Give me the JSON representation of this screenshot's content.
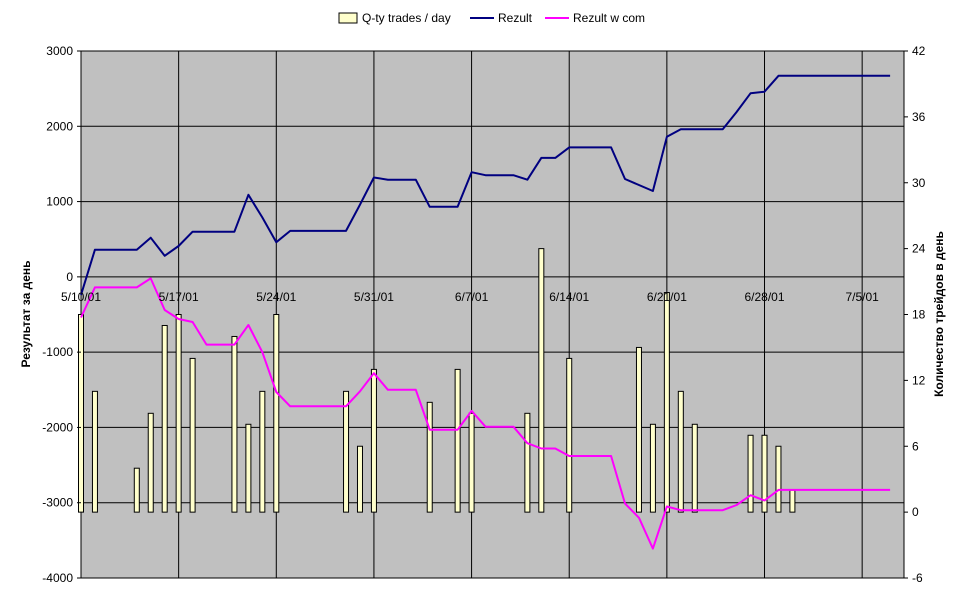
{
  "chart_data": {
    "type": "bar+line",
    "legend": {
      "placement": "top",
      "entries": [
        "Q-ty trades / day",
        "Rezult",
        "Rezult w com"
      ]
    },
    "colors": {
      "plot_bg": "#c0c0c0",
      "bar_fill": "#ffffcc",
      "bar_stroke": "#000000",
      "rezult": "#000080",
      "rezult_com": "#ff00ff",
      "grid": "#000000"
    },
    "grid": true,
    "x_axis": {
      "type": "date",
      "range": [
        "2001-05-10",
        "2001-07-08"
      ],
      "tick_labels": [
        "5/10/01",
        "5/17/01",
        "5/24/01",
        "5/31/01",
        "6/7/01",
        "6/14/01",
        "6/21/01",
        "6/28/01",
        "7/5/01"
      ],
      "tick_dates": [
        "2001-05-10",
        "2001-05-17",
        "2001-05-24",
        "2001-05-31",
        "2001-06-07",
        "2001-06-14",
        "2001-06-21",
        "2001-06-28",
        "2001-07-05"
      ]
    },
    "y_left": {
      "label": "Результат за день",
      "range": [
        -4000,
        3000
      ],
      "tick_labels": [
        "3000",
        "2000",
        "1000",
        "0",
        "-1000",
        "-2000",
        "-3000",
        "-4000"
      ],
      "ticks": [
        3000,
        2000,
        1000,
        0,
        -1000,
        -2000,
        -3000,
        -4000
      ]
    },
    "y_right": {
      "label": "Количество трейдов в день",
      "range": [
        -6,
        42
      ],
      "tick_labels": [
        "42",
        "36",
        "30",
        "24",
        "18",
        "12",
        "6",
        "0",
        "-6"
      ],
      "ticks": [
        42,
        36,
        30,
        24,
        18,
        12,
        6,
        0,
        -6
      ]
    },
    "series": [
      {
        "name": "Q-ty trades / day",
        "kind": "bar",
        "axis": "right",
        "points": [
          [
            "2001-05-10",
            18
          ],
          [
            "2001-05-11",
            11
          ],
          [
            "2001-05-14",
            4
          ],
          [
            "2001-05-15",
            9
          ],
          [
            "2001-05-16",
            17
          ],
          [
            "2001-05-17",
            18
          ],
          [
            "2001-05-18",
            14
          ],
          [
            "2001-05-21",
            16
          ],
          [
            "2001-05-22",
            8
          ],
          [
            "2001-05-23",
            11
          ],
          [
            "2001-05-24",
            18
          ],
          [
            "2001-05-29",
            11
          ],
          [
            "2001-05-30",
            6
          ],
          [
            "2001-05-31",
            13
          ],
          [
            "2001-06-04",
            10
          ],
          [
            "2001-06-06",
            13
          ],
          [
            "2001-06-07",
            9
          ],
          [
            "2001-06-11",
            9
          ],
          [
            "2001-06-12",
            24
          ],
          [
            "2001-06-14",
            14
          ],
          [
            "2001-06-19",
            15
          ],
          [
            "2001-06-20",
            8
          ],
          [
            "2001-06-21",
            20
          ],
          [
            "2001-06-22",
            11
          ],
          [
            "2001-06-23",
            8
          ],
          [
            "2001-06-27",
            7
          ],
          [
            "2001-06-28",
            7
          ],
          [
            "2001-06-29",
            6
          ],
          [
            "2001-06-30",
            2
          ]
        ]
      },
      {
        "name": "Rezult",
        "kind": "line",
        "axis": "left",
        "points": [
          [
            "2001-05-10",
            -240
          ],
          [
            "2001-05-11",
            360
          ],
          [
            "2001-05-13",
            360
          ],
          [
            "2001-05-14",
            360
          ],
          [
            "2001-05-15",
            520
          ],
          [
            "2001-05-16",
            280
          ],
          [
            "2001-05-17",
            410
          ],
          [
            "2001-05-18",
            600
          ],
          [
            "2001-05-20",
            600
          ],
          [
            "2001-05-21",
            600
          ],
          [
            "2001-05-22",
            1090
          ],
          [
            "2001-05-23",
            790
          ],
          [
            "2001-05-24",
            460
          ],
          [
            "2001-05-25",
            610
          ],
          [
            "2001-05-27",
            610
          ],
          [
            "2001-05-29",
            610
          ],
          [
            "2001-05-30",
            960
          ],
          [
            "2001-05-31",
            1320
          ],
          [
            "2001-06-01",
            1290
          ],
          [
            "2001-06-03",
            1290
          ],
          [
            "2001-06-04",
            930
          ],
          [
            "2001-06-06",
            930
          ],
          [
            "2001-06-07",
            1390
          ],
          [
            "2001-06-08",
            1350
          ],
          [
            "2001-06-10",
            1350
          ],
          [
            "2001-06-11",
            1290
          ],
          [
            "2001-06-12",
            1580
          ],
          [
            "2001-06-13",
            1580
          ],
          [
            "2001-06-14",
            1720
          ],
          [
            "2001-06-15",
            1720
          ],
          [
            "2001-06-17",
            1720
          ],
          [
            "2001-06-18",
            1300
          ],
          [
            "2001-06-20",
            1140
          ],
          [
            "2001-06-21",
            1860
          ],
          [
            "2001-06-22",
            1960
          ],
          [
            "2001-06-25",
            1960
          ],
          [
            "2001-06-26",
            2190
          ],
          [
            "2001-06-27",
            2440
          ],
          [
            "2001-06-28",
            2460
          ],
          [
            "2001-06-29",
            2670
          ],
          [
            "2001-07-07",
            2670
          ]
        ]
      },
      {
        "name": "Rezult w com",
        "kind": "line",
        "axis": "left",
        "points": [
          [
            "2001-05-10",
            -540
          ],
          [
            "2001-05-11",
            -140
          ],
          [
            "2001-05-13",
            -140
          ],
          [
            "2001-05-14",
            -140
          ],
          [
            "2001-05-15",
            -20
          ],
          [
            "2001-05-16",
            -440
          ],
          [
            "2001-05-17",
            -560
          ],
          [
            "2001-05-18",
            -600
          ],
          [
            "2001-05-19",
            -900
          ],
          [
            "2001-05-21",
            -900
          ],
          [
            "2001-05-22",
            -640
          ],
          [
            "2001-05-23",
            -1000
          ],
          [
            "2001-05-24",
            -1530
          ],
          [
            "2001-05-25",
            -1720
          ],
          [
            "2001-05-27",
            -1720
          ],
          [
            "2001-05-29",
            -1720
          ],
          [
            "2001-05-30",
            -1520
          ],
          [
            "2001-05-31",
            -1280
          ],
          [
            "2001-06-01",
            -1500
          ],
          [
            "2001-06-03",
            -1500
          ],
          [
            "2001-06-04",
            -2030
          ],
          [
            "2001-06-06",
            -2030
          ],
          [
            "2001-06-07",
            -1780
          ],
          [
            "2001-06-08",
            -1990
          ],
          [
            "2001-06-10",
            -1990
          ],
          [
            "2001-06-11",
            -2210
          ],
          [
            "2001-06-12",
            -2280
          ],
          [
            "2001-06-13",
            -2280
          ],
          [
            "2001-06-14",
            -2380
          ],
          [
            "2001-06-15",
            -2380
          ],
          [
            "2001-06-17",
            -2380
          ],
          [
            "2001-06-18",
            -3010
          ],
          [
            "2001-06-19",
            -3200
          ],
          [
            "2001-06-20",
            -3610
          ],
          [
            "2001-06-21",
            -3050
          ],
          [
            "2001-06-22",
            -3100
          ],
          [
            "2001-06-25",
            -3100
          ],
          [
            "2001-06-26",
            -3030
          ],
          [
            "2001-06-27",
            -2900
          ],
          [
            "2001-06-28",
            -2970
          ],
          [
            "2001-06-29",
            -2830
          ],
          [
            "2001-07-07",
            -2830
          ]
        ]
      }
    ]
  }
}
